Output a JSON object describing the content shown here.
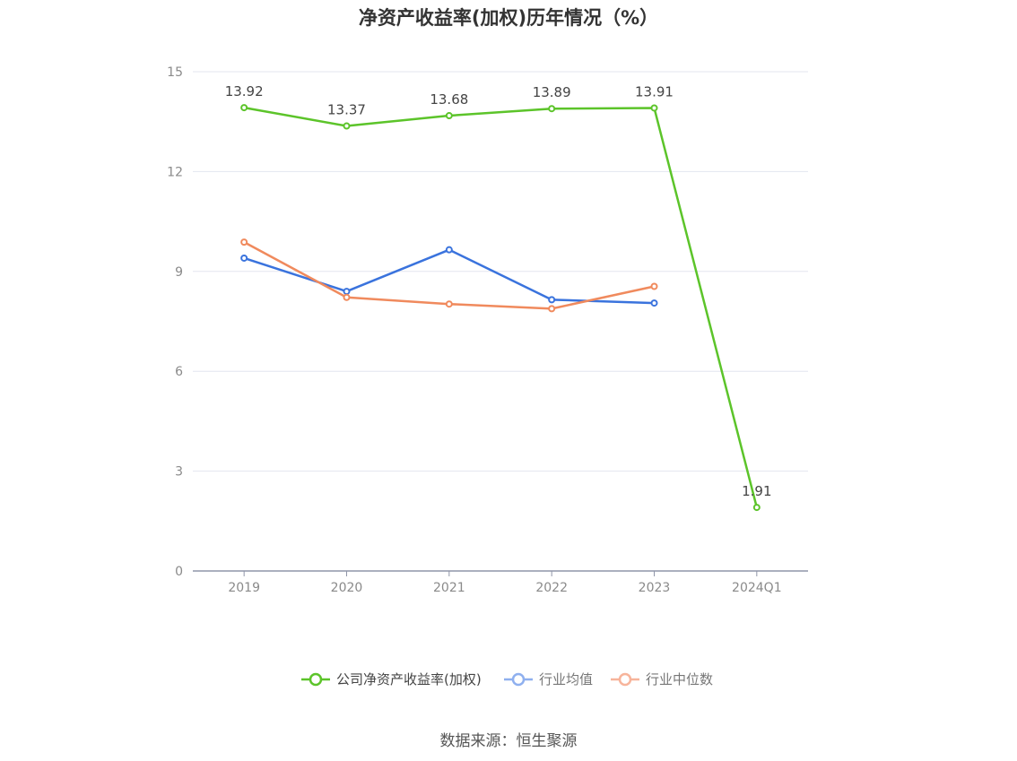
{
  "chart_data": {
    "type": "line",
    "title": "净资产收益率(加权)历年情况（%）",
    "categories": [
      "2019",
      "2020",
      "2021",
      "2022",
      "2023",
      "2024Q1"
    ],
    "y_ticks": [
      "0",
      "3",
      "6",
      "9",
      "12",
      "15"
    ],
    "ylim": [
      0,
      15
    ],
    "grid": true,
    "legend_position": "bottom",
    "series": [
      {
        "name": "公司净资产收益率(加权)",
        "color": "#5cc42a",
        "values": [
          13.92,
          13.37,
          13.68,
          13.89,
          13.91,
          1.91
        ],
        "labels": [
          "13.92",
          "13.37",
          "13.68",
          "13.89",
          "13.91",
          "1.91"
        ]
      },
      {
        "name": "行业均值",
        "color": "#3a73dd",
        "values": [
          9.4,
          8.4,
          9.65,
          8.15,
          8.05,
          null
        ]
      },
      {
        "name": "行业中位数",
        "color": "#f08a5d",
        "values": [
          9.88,
          8.22,
          8.02,
          7.88,
          8.55,
          null
        ]
      }
    ]
  },
  "legend_colors": [
    "#5cc42a",
    "#8fb0ef",
    "#f7b49b"
  ],
  "source": "数据来源：恒生聚源"
}
